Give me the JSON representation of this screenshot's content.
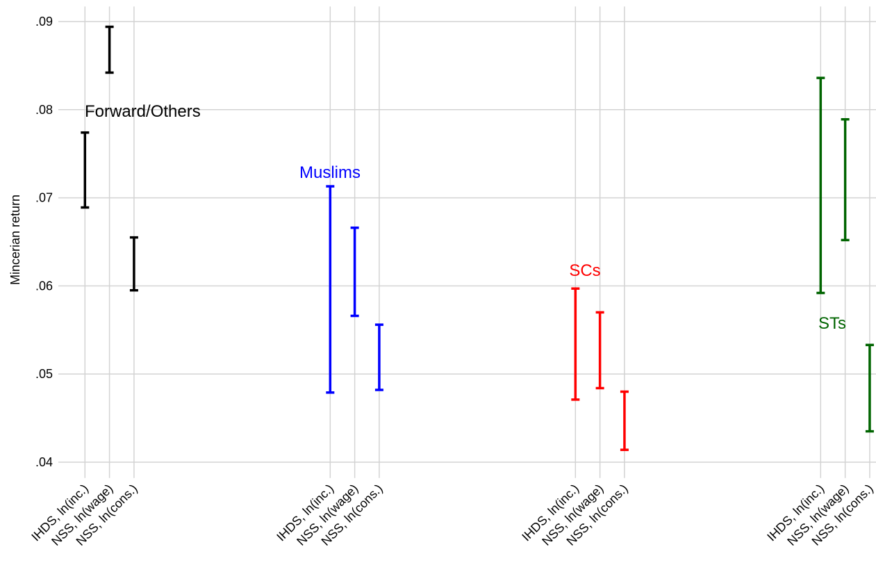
{
  "chart_data": {
    "type": "errorbar",
    "ylabel": "Mincerian return",
    "xlim": [
      0,
      33.2
    ],
    "ylim": [
      0.0382,
      0.0917
    ],
    "yticks": [
      {
        "value": 0.04,
        "label": ".04"
      },
      {
        "value": 0.05,
        "label": ".05"
      },
      {
        "value": 0.06,
        "label": ".06"
      },
      {
        "value": 0.07,
        "label": ".07"
      },
      {
        "value": 0.08,
        "label": ".08"
      },
      {
        "value": 0.09,
        "label": ".09"
      }
    ],
    "xticks": [
      {
        "value": 1,
        "label": "IHDS, ln(inc.)"
      },
      {
        "value": 2,
        "label": "NSS, ln(wage)"
      },
      {
        "value": 3,
        "label": "NSS, ln(cons.)"
      },
      {
        "value": 11,
        "label": "IHDS, ln(inc.)"
      },
      {
        "value": 12,
        "label": "NSS, ln(wage)"
      },
      {
        "value": 13,
        "label": "NSS, ln(cons.)"
      },
      {
        "value": 21,
        "label": "IHDS, ln(inc.)"
      },
      {
        "value": 22,
        "label": "NSS, ln(wage)"
      },
      {
        "value": 23,
        "label": "NSS, ln(cons.)"
      },
      {
        "value": 31,
        "label": "IHDS, ln(inc.)"
      },
      {
        "value": 32,
        "label": "NSS, ln(wage)"
      },
      {
        "value": 33,
        "label": "NSS, ln(cons.)"
      }
    ],
    "grid": true,
    "series": [
      {
        "name": "Forward/Others",
        "color": "#000000",
        "x": [
          1,
          2,
          3
        ],
        "low": [
          0.0689,
          0.0842,
          0.0595
        ],
        "high": [
          0.0774,
          0.0894,
          0.0655
        ]
      },
      {
        "name": "Muslims",
        "color": "#0000ff",
        "x": [
          11,
          12,
          13
        ],
        "low": [
          0.0479,
          0.0566,
          0.0482
        ],
        "high": [
          0.0713,
          0.0666,
          0.0556
        ]
      },
      {
        "name": "SCs",
        "color": "#ff0000",
        "x": [
          21,
          22,
          23
        ],
        "low": [
          0.0471,
          0.0484,
          0.0414
        ],
        "high": [
          0.0597,
          0.057,
          0.048
        ]
      },
      {
        "name": "STs",
        "color": "#006400",
        "x": [
          31,
          32,
          33
        ],
        "low": [
          0.0592,
          0.0652,
          0.0435
        ],
        "high": [
          0.0836,
          0.0789,
          0.0533
        ]
      }
    ]
  }
}
